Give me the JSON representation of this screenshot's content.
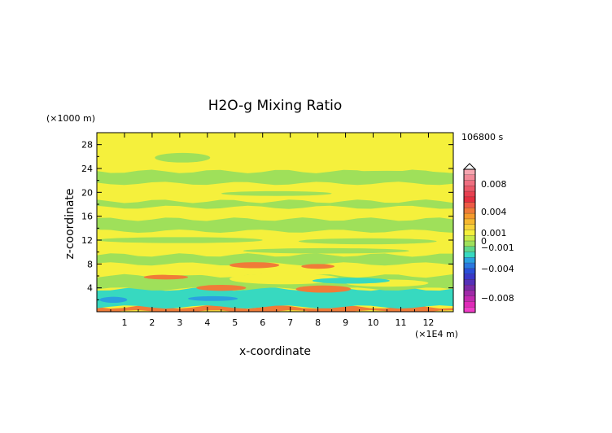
{
  "chart_data": {
    "type": "heatmap",
    "title": "H2O-g Mixing Ratio",
    "time_label": "106800 s",
    "xlabel": "x-coordinate",
    "ylabel": "z-coordinate",
    "x_unit": "(×1E4 m)",
    "y_unit": "(×1000 m)",
    "xlim": [
      0,
      12.9
    ],
    "ylim": [
      0,
      30
    ],
    "x_ticks": [
      1,
      2,
      3,
      4,
      5,
      6,
      7,
      8,
      9,
      10,
      11,
      12
    ],
    "y_ticks": [
      4,
      8,
      12,
      16,
      20,
      24,
      28
    ],
    "colorbar": {
      "labels": [
        {
          "text": "0.008",
          "value": 0.008
        },
        {
          "text": "0.004",
          "value": 0.004
        },
        {
          "text": "0.001",
          "value": 0.001
        },
        {
          "text": "0",
          "value": 0
        },
        {
          "text": "−0.001",
          "value": -0.001
        },
        {
          "text": "−0.004",
          "value": -0.004
        },
        {
          "text": "−0.008",
          "value": -0.008
        }
      ]
    },
    "background_color": "#f5f03c",
    "regions": [
      {
        "type": "band",
        "y": [
          0,
          0.8
        ],
        "color": "#f07b38"
      },
      {
        "type": "band",
        "y": [
          0.8,
          3.8
        ],
        "color": "#37d9c0"
      },
      {
        "type": "band",
        "y": [
          3.8,
          6.0
        ],
        "color": "#9fe05a"
      },
      {
        "type": "band",
        "y": [
          8.0,
          9.5
        ],
        "color": "#9fe05a"
      },
      {
        "type": "band",
        "y": [
          13.5,
          15.5
        ],
        "color": "#9fe05a"
      },
      {
        "type": "band",
        "y": [
          17.5,
          18.5
        ],
        "color": "#9fe05a"
      },
      {
        "type": "band",
        "y": [
          21.5,
          23.5
        ],
        "color": "#9fe05a"
      },
      {
        "type": "blob",
        "cx": 8.2,
        "cy": 3.8,
        "rx": 1.0,
        "ry": 0.6,
        "color": "#f07b38"
      },
      {
        "type": "blob",
        "cx": 4.5,
        "cy": 4.0,
        "rx": 0.9,
        "ry": 0.5,
        "color": "#f07b38"
      },
      {
        "type": "blob",
        "cx": 2.5,
        "cy": 5.8,
        "rx": 0.8,
        "ry": 0.4,
        "color": "#f07b38"
      },
      {
        "type": "blob",
        "cx": 5.7,
        "cy": 7.8,
        "rx": 0.9,
        "ry": 0.5,
        "color": "#f07b38"
      },
      {
        "type": "blob",
        "cx": 8.0,
        "cy": 7.6,
        "rx": 0.6,
        "ry": 0.4,
        "color": "#f07b38"
      },
      {
        "type": "blob",
        "cx": 3.2,
        "cy": 6.8,
        "rx": 1.6,
        "ry": 0.7,
        "color": "#f5f03c"
      },
      {
        "type": "blob",
        "cx": 6.8,
        "cy": 5.5,
        "rx": 2.0,
        "ry": 0.9,
        "color": "#f5f03c"
      },
      {
        "type": "blob",
        "cx": 10.5,
        "cy": 4.8,
        "rx": 1.5,
        "ry": 0.6,
        "color": "#f5f03c"
      },
      {
        "type": "blob",
        "cx": 4.2,
        "cy": 2.2,
        "rx": 0.9,
        "ry": 0.4,
        "color": "#2aa0e0"
      },
      {
        "type": "blob",
        "cx": 0.6,
        "cy": 2.0,
        "rx": 0.5,
        "ry": 0.5,
        "color": "#2aa0e0"
      },
      {
        "type": "blob",
        "cx": 9.2,
        "cy": 5.2,
        "rx": 1.4,
        "ry": 0.5,
        "color": "#37d9c0"
      },
      {
        "type": "blob",
        "cx": 3.1,
        "cy": 25.8,
        "rx": 1.0,
        "ry": 0.8,
        "color": "#9fe05a"
      },
      {
        "type": "blob",
        "cx": 10.5,
        "cy": 23.0,
        "rx": 2.5,
        "ry": 0.6,
        "color": "#9fe05a"
      },
      {
        "type": "blob",
        "cx": 6.5,
        "cy": 19.8,
        "rx": 2.0,
        "ry": 0.4,
        "color": "#9fe05a"
      },
      {
        "type": "blob",
        "cx": 3.0,
        "cy": 12.0,
        "rx": 3.0,
        "ry": 0.5,
        "color": "#9fe05a"
      },
      {
        "type": "blob",
        "cx": 9.8,
        "cy": 11.8,
        "rx": 2.5,
        "ry": 0.5,
        "color": "#9fe05a"
      },
      {
        "type": "blob",
        "cx": 8.3,
        "cy": 10.2,
        "rx": 3.0,
        "ry": 0.45,
        "color": "#9fe05a"
      }
    ]
  }
}
